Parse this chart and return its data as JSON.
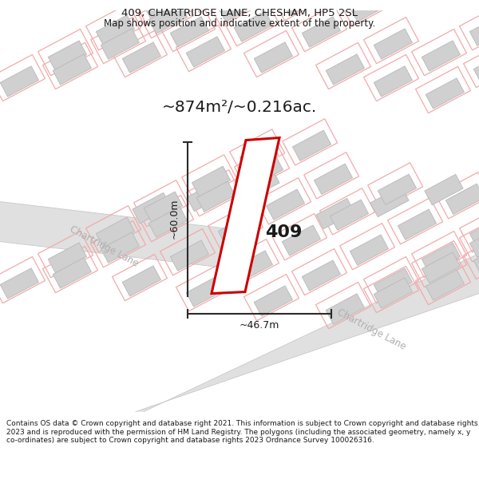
{
  "title_line1": "409, CHARTRIDGE LANE, CHESHAM, HP5 2SL",
  "title_line2": "Map shows position and indicative extent of the property.",
  "area_label": "~874m²/~0.216ac.",
  "plot_number": "409",
  "dim_vertical": "~60.0m",
  "dim_horizontal": "~46.7m",
  "road_label1": "Chartridge Lane",
  "road_label2": "Chartridge Lane",
  "footer_text": "Contains OS data © Crown copyright and database right 2021. This information is subject to Crown copyright and database rights 2023 and is reproduced with the permission of HM Land Registry. The polygons (including the associated geometry, namely x, y co-ordinates) are subject to Crown copyright and database rights 2023 Ordnance Survey 100026316.",
  "bg_color": "#ffffff",
  "map_bg": "#faf5f5",
  "road_fill": "#e0e0e0",
  "road_edge": "#c8c8c8",
  "bld_fill": "#d0d0d0",
  "bld_edge": "#b8b8b8",
  "plot_color": "#cc0000",
  "dim_color": "#2a2a2a",
  "pink": "#f2aaaa",
  "road_text_color": "#b0b0b0",
  "text_color": "#1a1a1a",
  "footer_fontsize": 6.5,
  "title1_fontsize": 9.5,
  "title2_fontsize": 8.5,
  "map_rot": -28
}
